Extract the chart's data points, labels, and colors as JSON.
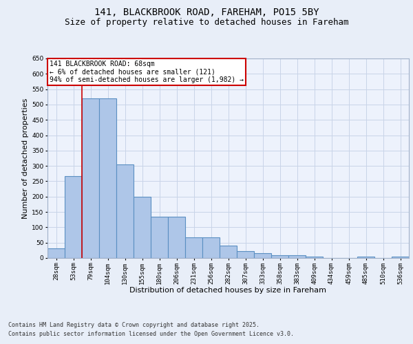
{
  "title": "141, BLACKBROOK ROAD, FAREHAM, PO15 5BY",
  "subtitle": "Size of property relative to detached houses in Fareham",
  "xlabel": "Distribution of detached houses by size in Fareham",
  "ylabel": "Number of detached properties",
  "footer_line1": "Contains HM Land Registry data © Crown copyright and database right 2025.",
  "footer_line2": "Contains public sector information licensed under the Open Government Licence v3.0.",
  "categories": [
    "28sqm",
    "53sqm",
    "79sqm",
    "104sqm",
    "130sqm",
    "155sqm",
    "180sqm",
    "206sqm",
    "231sqm",
    "256sqm",
    "282sqm",
    "307sqm",
    "333sqm",
    "358sqm",
    "383sqm",
    "409sqm",
    "434sqm",
    "459sqm",
    "485sqm",
    "510sqm",
    "536sqm"
  ],
  "values": [
    32,
    267,
    519,
    520,
    305,
    200,
    135,
    135,
    68,
    68,
    40,
    22,
    15,
    10,
    9,
    5,
    1,
    1,
    4,
    1,
    5
  ],
  "bar_color": "#aec6e8",
  "bar_edge_color": "#5a8fc2",
  "bar_edge_width": 0.8,
  "annotation_line1": "141 BLACKBROOK ROAD: 68sqm",
  "annotation_line2": "← 6% of detached houses are smaller (121)",
  "annotation_line3": "94% of semi-detached houses are larger (1,982) →",
  "vline_x_index": 1.5,
  "vline_color": "#cc0000",
  "annotation_box_color": "#cc0000",
  "ylim": [
    0,
    650
  ],
  "yticks": [
    0,
    50,
    100,
    150,
    200,
    250,
    300,
    350,
    400,
    450,
    500,
    550,
    600,
    650
  ],
  "grid_color": "#c8d4e8",
  "background_color": "#e8eef8",
  "plot_bg_color": "#edf2fc",
  "title_fontsize": 10,
  "subtitle_fontsize": 9,
  "axis_label_fontsize": 8,
  "tick_fontsize": 6.5,
  "annotation_fontsize": 7,
  "footer_fontsize": 6
}
